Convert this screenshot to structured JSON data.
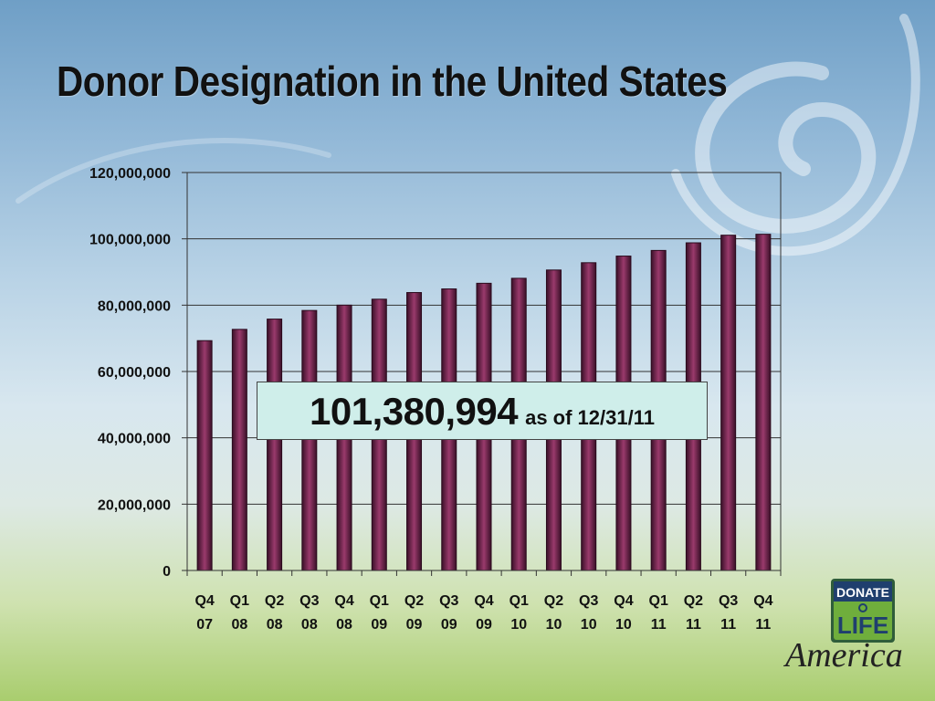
{
  "slide": {
    "title": "Donor Designation in the United States"
  },
  "callout": {
    "value": "101,380,994",
    "suffix": "as of 12/31/11"
  },
  "logo": {
    "line1": "DONATE",
    "line2": "LIFE",
    "line3": "America"
  },
  "colors": {
    "bar_dark": "#3a1028",
    "bar_light": "#9a3a6c",
    "callout_bg": "#cfeeea"
  },
  "chart_data": {
    "type": "bar",
    "title": "",
    "xlabel": "",
    "ylabel": "",
    "ylim": [
      0,
      120000000
    ],
    "yticks": [
      0,
      20000000,
      40000000,
      60000000,
      80000000,
      100000000,
      120000000
    ],
    "ytick_labels": [
      "0",
      "20,000,000",
      "40,000,000",
      "60,000,000",
      "80,000,000",
      "100,000,000",
      "120,000,000"
    ],
    "categories": [
      [
        "Q4",
        "07"
      ],
      [
        "Q1",
        "08"
      ],
      [
        "Q2",
        "08"
      ],
      [
        "Q3",
        "08"
      ],
      [
        "Q4",
        "08"
      ],
      [
        "Q1",
        "09"
      ],
      [
        "Q2",
        "09"
      ],
      [
        "Q3",
        "09"
      ],
      [
        "Q4",
        "09"
      ],
      [
        "Q1",
        "10"
      ],
      [
        "Q2",
        "10"
      ],
      [
        "Q3",
        "10"
      ],
      [
        "Q4",
        "10"
      ],
      [
        "Q1",
        "11"
      ],
      [
        "Q2",
        "11"
      ],
      [
        "Q3",
        "11"
      ],
      [
        "Q4",
        "11"
      ]
    ],
    "values": [
      69300000,
      72700000,
      75800000,
      78400000,
      80000000,
      81800000,
      83800000,
      84900000,
      86600000,
      88100000,
      90600000,
      92800000,
      94800000,
      96500000,
      98800000,
      101100000,
      101380994
    ],
    "grid": true,
    "legend": "none"
  }
}
